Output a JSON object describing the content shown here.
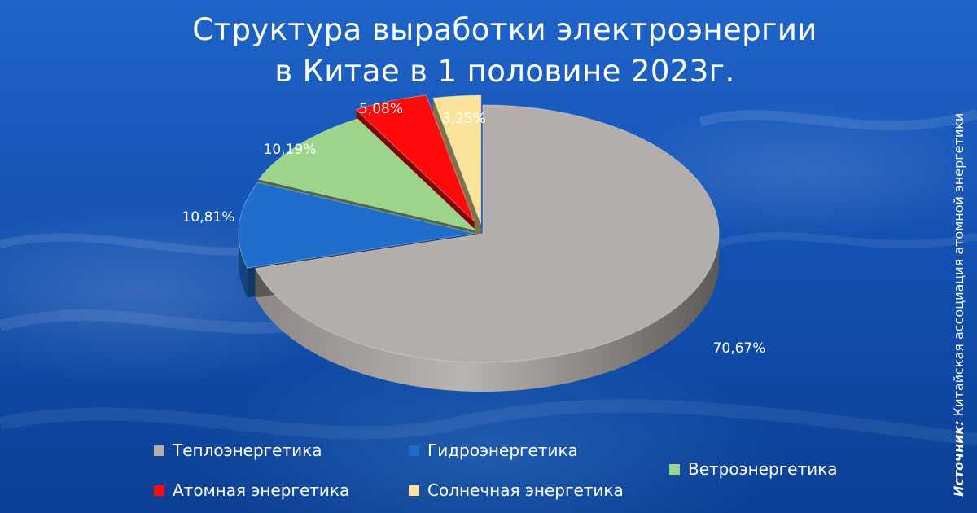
{
  "title_line1": "Структура выработки электроэнергии",
  "title_line2": "в Китае в 1 половине 2023г.",
  "source": {
    "prefix": "Источник:",
    "text": "Китайская ассоциация атомной энергетики"
  },
  "chart_data": {
    "type": "pie",
    "style": "3d-exploded",
    "categories": [
      "Теплоэнергетика",
      "Гидроэнергетика",
      "Ветроэнергетика",
      "Атомная энергетика",
      "Солнечная энергетика"
    ],
    "values": [
      70.67,
      10.81,
      10.19,
      5.08,
      3.25
    ],
    "value_labels": [
      "70,67%",
      "10,81%",
      "10,19%",
      "5,08%",
      "3,25%"
    ],
    "colors": [
      "#b3aeac",
      "#1f6ecb",
      "#9bd48a",
      "#ff0a0a",
      "#fbe49a"
    ],
    "legend_position": "bottom"
  },
  "legend": [
    {
      "label": "Теплоэнергетика",
      "color": "#b3aeac"
    },
    {
      "label": "Гидроэнергетика",
      "color": "#1f6ecb"
    },
    {
      "label": "Ветроэнергетика",
      "color": "#9bd48a"
    },
    {
      "label": "Атомная энергетика",
      "color": "#ff0a0a"
    },
    {
      "label": "Солнечная энергетика",
      "color": "#fbe49a"
    }
  ]
}
